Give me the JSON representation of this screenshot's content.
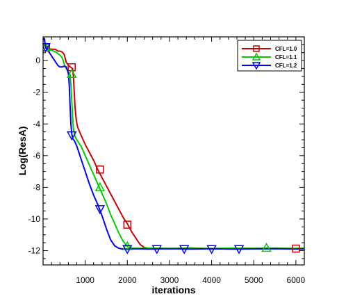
{
  "chart_data": {
    "type": "line",
    "title": "",
    "xlabel": "iterations",
    "ylabel": "Log(ResA)",
    "xlim": [
      0,
      6200
    ],
    "ylim": [
      -12.9,
      1.5
    ],
    "x_ticks": [
      1000,
      2000,
      3000,
      4000,
      5000,
      6000
    ],
    "y_ticks": [
      0,
      -2,
      -4,
      -6,
      -8,
      -10,
      -12
    ],
    "grid": false,
    "legend_position": "top-right",
    "series": [
      {
        "name": "CFL=1.0",
        "color": "#cc0000",
        "marker": "square",
        "x": [
          0,
          30,
          60,
          100,
          150,
          200,
          250,
          300,
          350,
          400,
          450,
          500,
          550,
          600,
          650,
          700,
          720,
          740,
          760,
          790,
          820,
          900,
          1000,
          1100,
          1200,
          1300,
          1400,
          1500,
          1600,
          1700,
          1800,
          1900,
          2000,
          2100,
          2200,
          2300,
          2400,
          2500,
          2700,
          3000,
          3500,
          4000,
          4500,
          5000,
          5500,
          6000,
          6200
        ],
        "y": [
          1.3,
          1.4,
          0.9,
          0.85,
          0.75,
          0.72,
          0.72,
          0.7,
          0.6,
          0.6,
          0.55,
          0.4,
          -0.1,
          -0.3,
          -0.4,
          -0.5,
          -1.0,
          -2.0,
          -3.0,
          -3.8,
          -4.2,
          -4.7,
          -5.3,
          -5.8,
          -6.3,
          -6.9,
          -7.4,
          -7.9,
          -8.4,
          -8.9,
          -9.4,
          -9.9,
          -10.3,
          -10.8,
          -11.2,
          -11.6,
          -11.8,
          -11.85,
          -11.85,
          -11.87,
          -11.83,
          -11.88,
          -11.85,
          -11.86,
          -11.84,
          -11.87,
          -11.85
        ],
        "marker_points": [
          [
            70,
            0.82
          ],
          [
            680,
            -0.42
          ],
          [
            1350,
            -6.88
          ],
          [
            2000,
            -10.36
          ],
          [
            6000,
            -11.87
          ]
        ]
      },
      {
        "name": "CFL=1.1",
        "color": "#00cc00",
        "marker": "triangle-up",
        "x": [
          0,
          30,
          60,
          100,
          150,
          200,
          250,
          300,
          350,
          400,
          450,
          500,
          550,
          600,
          640,
          660,
          680,
          700,
          720,
          760,
          800,
          900,
          1000,
          1100,
          1200,
          1300,
          1400,
          1500,
          1600,
          1700,
          1800,
          1900,
          2000,
          2100,
          2200,
          2300,
          2500,
          3000,
          3500,
          4000,
          4500,
          5000,
          5500,
          6000,
          6200
        ],
        "y": [
          1.3,
          1.4,
          0.85,
          0.8,
          0.7,
          0.65,
          0.6,
          0.55,
          0.45,
          0.35,
          0.2,
          -0.2,
          -0.5,
          -0.7,
          -0.9,
          -1.5,
          -2.5,
          -3.5,
          -4.3,
          -4.8,
          -5.0,
          -5.4,
          -6.0,
          -6.6,
          -7.2,
          -7.8,
          -8.4,
          -9.0,
          -9.7,
          -10.3,
          -10.9,
          -11.4,
          -11.75,
          -11.85,
          -11.85,
          -11.86,
          -11.84,
          -11.86,
          -11.85,
          -11.87,
          -11.84,
          -11.86,
          -11.85,
          -11.86,
          -11.85
        ],
        "marker_points": [
          [
            60,
            0.85
          ],
          [
            680,
            -0.84
          ],
          [
            1350,
            -8.0
          ],
          [
            2000,
            -11.72
          ],
          [
            5300,
            -11.82
          ]
        ]
      },
      {
        "name": "CFL=1.2",
        "color": "#0000ff",
        "marker": "triangle-down",
        "x": [
          0,
          30,
          60,
          100,
          150,
          200,
          250,
          300,
          350,
          400,
          450,
          500,
          550,
          600,
          620,
          640,
          660,
          680,
          700,
          750,
          800,
          900,
          1000,
          1100,
          1200,
          1300,
          1400,
          1500,
          1600,
          1700,
          1800,
          1900,
          2000,
          2200,
          2500,
          3000,
          3500,
          4000,
          4500,
          5000,
          5500,
          6000,
          6200
        ],
        "y": [
          1.3,
          1.4,
          0.8,
          0.7,
          0.5,
          0.3,
          0.1,
          -0.1,
          -0.3,
          -0.4,
          -0.4,
          -0.35,
          -0.4,
          -0.8,
          -1.5,
          -2.8,
          -4.0,
          -4.6,
          -4.9,
          -5.1,
          -5.4,
          -6.2,
          -7.0,
          -7.8,
          -8.5,
          -9.1,
          -9.8,
          -10.6,
          -11.3,
          -11.7,
          -11.85,
          -11.9,
          -11.9,
          -11.88,
          -11.9,
          -11.88,
          -11.9,
          -11.88,
          -11.9,
          -11.89,
          -11.88,
          -11.9,
          -11.89
        ],
        "marker_points": [
          [
            60,
            0.85
          ],
          [
            680,
            -4.72
          ],
          [
            1350,
            -9.38
          ],
          [
            2000,
            -11.9
          ],
          [
            2700,
            -11.9
          ],
          [
            3350,
            -11.9
          ],
          [
            4000,
            -11.9
          ],
          [
            4650,
            -11.9
          ]
        ]
      }
    ]
  }
}
